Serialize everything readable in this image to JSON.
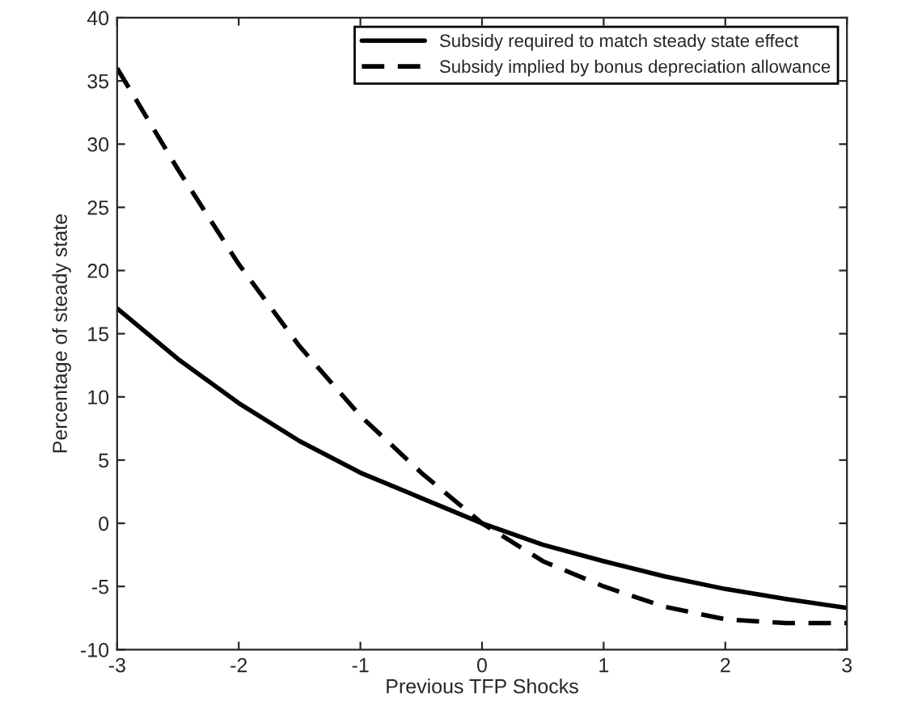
{
  "chart_data": {
    "type": "line",
    "xlabel": "Previous TFP Shocks",
    "ylabel": "Percentage of steady state",
    "x": [
      -3,
      -2.5,
      -2,
      -1.5,
      -1,
      -0.5,
      0,
      0.5,
      1,
      1.5,
      2,
      2.5,
      3
    ],
    "series": [
      {
        "name": "Subsidy required to match steady state effect",
        "color": "#000000",
        "line_style": "solid",
        "values": [
          17,
          13,
          9.5,
          6.5,
          4,
          2,
          0,
          -1.7,
          -3,
          -4.2,
          -5.2,
          -6,
          -6.7
        ]
      },
      {
        "name": "Subsidy implied by bonus depreciation allowance",
        "color": "#000000",
        "line_style": "dashed",
        "values": [
          36,
          28,
          20.5,
          14,
          8.5,
          4,
          0,
          -3,
          -5,
          -6.6,
          -7.6,
          -7.9,
          -7.9
        ]
      }
    ],
    "xlim": [
      -3,
      3
    ],
    "xticks": [
      -3,
      -2,
      -1,
      0,
      1,
      2,
      3
    ],
    "ylim": [
      -10,
      40
    ],
    "yticks": [
      -10,
      -5,
      0,
      5,
      10,
      15,
      20,
      25,
      30,
      35,
      40
    ],
    "grid": false,
    "legend": "top right",
    "marker": "none"
  }
}
